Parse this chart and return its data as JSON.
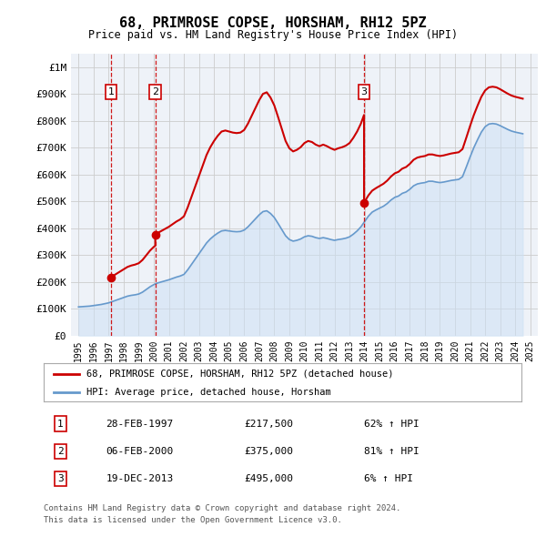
{
  "title": "68, PRIMROSE COPSE, HORSHAM, RH12 5PZ",
  "subtitle": "Price paid vs. HM Land Registry's House Price Index (HPI)",
  "legend_line1": "68, PRIMROSE COPSE, HORSHAM, RH12 5PZ (detached house)",
  "legend_line2": "HPI: Average price, detached house, Horsham",
  "footer1": "Contains HM Land Registry data © Crown copyright and database right 2024.",
  "footer2": "This data is licensed under the Open Government Licence v3.0.",
  "transactions": [
    {
      "num": 1,
      "date": "28-FEB-1997",
      "price": 217500,
      "pct": "62% ↑ HPI",
      "year": 1997.15
    },
    {
      "num": 2,
      "date": "06-FEB-2000",
      "price": 375000,
      "pct": "81% ↑ HPI",
      "year": 2000.1
    },
    {
      "num": 3,
      "date": "19-DEC-2013",
      "price": 495000,
      "pct": "6% ↑ HPI",
      "year": 2013.96
    }
  ],
  "sale_color": "#cc0000",
  "hpi_color": "#6699cc",
  "hpi_fill_color": "#cce0f5",
  "vline_color": "#cc0000",
  "grid_color": "#cccccc",
  "background_color": "#ffffff",
  "ylim": [
    0,
    1050000
  ],
  "xlim_start": 1994.5,
  "xlim_end": 2025.5,
  "yticks": [
    0,
    100000,
    200000,
    300000,
    400000,
    500000,
    600000,
    700000,
    800000,
    900000,
    1000000
  ],
  "ytick_labels": [
    "£0",
    "£100K",
    "£200K",
    "£300K",
    "£400K",
    "£500K",
    "£600K",
    "£700K",
    "£800K",
    "£900K",
    "£1M"
  ],
  "xticks": [
    1995,
    1996,
    1997,
    1998,
    1999,
    2000,
    2001,
    2002,
    2003,
    2004,
    2005,
    2006,
    2007,
    2008,
    2009,
    2010,
    2011,
    2012,
    2013,
    2014,
    2015,
    2016,
    2017,
    2018,
    2019,
    2020,
    2021,
    2022,
    2023,
    2024,
    2025
  ],
  "hpi_years": [
    1995.0,
    1995.25,
    1995.5,
    1995.75,
    1996.0,
    1996.25,
    1996.5,
    1996.75,
    1997.0,
    1997.25,
    1997.5,
    1997.75,
    1998.0,
    1998.25,
    1998.5,
    1998.75,
    1999.0,
    1999.25,
    1999.5,
    1999.75,
    2000.0,
    2000.25,
    2000.5,
    2000.75,
    2001.0,
    2001.25,
    2001.5,
    2001.75,
    2002.0,
    2002.25,
    2002.5,
    2002.75,
    2003.0,
    2003.25,
    2003.5,
    2003.75,
    2004.0,
    2004.25,
    2004.5,
    2004.75,
    2005.0,
    2005.25,
    2005.5,
    2005.75,
    2006.0,
    2006.25,
    2006.5,
    2006.75,
    2007.0,
    2007.25,
    2007.5,
    2007.75,
    2008.0,
    2008.25,
    2008.5,
    2008.75,
    2009.0,
    2009.25,
    2009.5,
    2009.75,
    2010.0,
    2010.25,
    2010.5,
    2010.75,
    2011.0,
    2011.25,
    2011.5,
    2011.75,
    2012.0,
    2012.25,
    2012.5,
    2012.75,
    2013.0,
    2013.25,
    2013.5,
    2013.75,
    2014.0,
    2014.25,
    2014.5,
    2014.75,
    2015.0,
    2015.25,
    2015.5,
    2015.75,
    2016.0,
    2016.25,
    2016.5,
    2016.75,
    2017.0,
    2017.25,
    2017.5,
    2017.75,
    2018.0,
    2018.25,
    2018.5,
    2018.75,
    2019.0,
    2019.25,
    2019.5,
    2019.75,
    2020.0,
    2020.25,
    2020.5,
    2020.75,
    2021.0,
    2021.25,
    2021.5,
    2021.75,
    2022.0,
    2022.25,
    2022.5,
    2022.75,
    2023.0,
    2023.25,
    2023.5,
    2023.75,
    2024.0,
    2024.25,
    2024.5
  ],
  "hpi_values": [
    107000,
    108000,
    109000,
    110000,
    112000,
    114000,
    116000,
    119000,
    122000,
    127000,
    132000,
    137000,
    142000,
    147000,
    150000,
    152000,
    155000,
    162000,
    172000,
    182000,
    190000,
    196000,
    200000,
    204000,
    208000,
    213000,
    218000,
    222000,
    228000,
    245000,
    265000,
    285000,
    305000,
    325000,
    345000,
    360000,
    372000,
    382000,
    390000,
    392000,
    390000,
    388000,
    387000,
    388000,
    393000,
    405000,
    420000,
    435000,
    450000,
    462000,
    465000,
    455000,
    440000,
    418000,
    395000,
    372000,
    358000,
    352000,
    355000,
    360000,
    368000,
    372000,
    370000,
    365000,
    362000,
    365000,
    362000,
    358000,
    355000,
    358000,
    360000,
    363000,
    368000,
    378000,
    390000,
    405000,
    425000,
    445000,
    460000,
    468000,
    475000,
    482000,
    492000,
    505000,
    515000,
    520000,
    530000,
    535000,
    545000,
    558000,
    565000,
    568000,
    570000,
    575000,
    575000,
    572000,
    570000,
    572000,
    575000,
    578000,
    580000,
    582000,
    592000,
    628000,
    665000,
    700000,
    730000,
    758000,
    778000,
    788000,
    790000,
    788000,
    782000,
    775000,
    768000,
    762000,
    758000,
    755000,
    752000
  ]
}
